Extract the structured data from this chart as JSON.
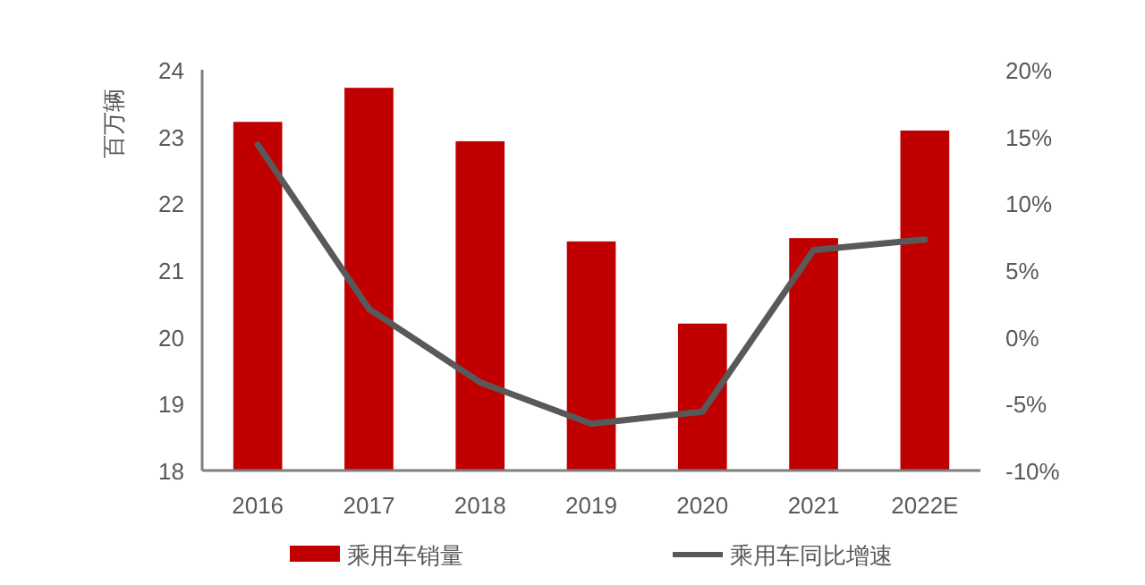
{
  "chart_data": {
    "type": "bar",
    "ylabel": "百万辆",
    "categories": [
      "2016",
      "2017",
      "2018",
      "2019",
      "2020",
      "2021",
      "2022E"
    ],
    "series": [
      {
        "name": "乘用车销量",
        "color": "#c00000",
        "values": [
          23.22,
          23.73,
          22.93,
          21.43,
          20.2,
          21.48,
          23.09
        ]
      },
      {
        "name": "乘用车同比增速",
        "type": "line",
        "axis": "y2",
        "color": "#595959",
        "values": [
          14.4,
          2.1,
          -3.4,
          -6.5,
          -5.6,
          6.5,
          7.3
        ]
      }
    ],
    "ylim": [
      18,
      24
    ],
    "yticks": [
      18,
      19,
      20,
      21,
      22,
      23,
      24
    ],
    "y2lim": [
      -10,
      20
    ],
    "y2ticks": [
      {
        "value": -10,
        "label": "-10%"
      },
      {
        "value": -5,
        "label": "-5%"
      },
      {
        "value": 0,
        "label": "0%"
      },
      {
        "value": 5,
        "label": "5%"
      },
      {
        "value": 10,
        "label": "10%"
      },
      {
        "value": 15,
        "label": "15%"
      },
      {
        "value": 20,
        "label": "20%"
      }
    ],
    "grid": false,
    "legend": "bottom",
    "marker": "none",
    "line_style": "solid"
  }
}
